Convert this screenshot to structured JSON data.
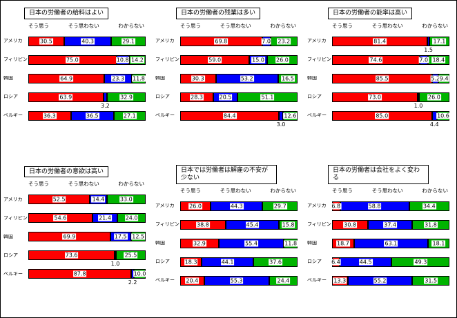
{
  "colors": {
    "agree": "#ff0000",
    "disagree": "#0000ff",
    "unknown": "#00b400"
  },
  "legend": {
    "agree": "そう思う",
    "disagree": "そう思わない",
    "unknown": "わからない"
  },
  "countries": [
    "アメリカ",
    "フィリピン",
    "韓国",
    "ロシア",
    "ベルギー"
  ],
  "chart_data": [
    {
      "type": "bar",
      "stacked": true,
      "orientation": "horizontal",
      "title": "日本の労働者の給料はよい",
      "categories": [
        "アメリカ",
        "フィリピン",
        "韓国",
        "ロシア",
        "ベルギー"
      ],
      "xlim": [
        0,
        100
      ],
      "grid": false,
      "legend_position": "top",
      "series": [
        {
          "name": "そう思う",
          "color": "#ff0000",
          "values": [
            30.5,
            75.0,
            64.9,
            63.9,
            36.3
          ]
        },
        {
          "name": "そう思わない",
          "color": "#0000ff",
          "values": [
            40.3,
            10.8,
            23.3,
            3.2,
            36.5
          ]
        },
        {
          "name": "わからない",
          "color": "#00b400",
          "values": [
            29.1,
            14.2,
            11.8,
            32.9,
            27.1
          ]
        }
      ]
    },
    {
      "type": "bar",
      "stacked": true,
      "orientation": "horizontal",
      "title": "日本の労働者の残業は多い",
      "categories": [
        "アメリカ",
        "フィリピン",
        "韓国",
        "ロシア",
        "ベルギー"
      ],
      "xlim": [
        0,
        100
      ],
      "grid": false,
      "legend_position": "top",
      "series": [
        {
          "name": "そう思う",
          "color": "#ff0000",
          "values": [
            69.8,
            59.0,
            30.3,
            28.3,
            84.4
          ]
        },
        {
          "name": "そう思わない",
          "color": "#0000ff",
          "values": [
            7.0,
            15.0,
            53.2,
            20.5,
            3.0
          ]
        },
        {
          "name": "わからない",
          "color": "#00b400",
          "values": [
            23.2,
            26.0,
            16.5,
            51.1,
            12.6
          ]
        }
      ]
    },
    {
      "type": "bar",
      "stacked": true,
      "orientation": "horizontal",
      "title": "日本の労働者の能率は高い",
      "categories": [
        "アメリカ",
        "フィリピン",
        "韓国",
        "ロシア",
        "ベルギー"
      ],
      "xlim": [
        0,
        100
      ],
      "grid": false,
      "legend_position": "top",
      "series": [
        {
          "name": "そう思う",
          "color": "#ff0000",
          "values": [
            81.4,
            74.6,
            85.5,
            73.0,
            85.0
          ]
        },
        {
          "name": "そう思わない",
          "color": "#0000ff",
          "values": [
            1.5,
            7.0,
            5.2,
            1.0,
            4.4
          ]
        },
        {
          "name": "わからない",
          "color": "#00b400",
          "values": [
            17.1,
            18.4,
            9.4,
            26.0,
            10.6
          ]
        }
      ]
    },
    {
      "type": "bar",
      "stacked": true,
      "orientation": "horizontal",
      "title": "日本の労働者の意欲は高い",
      "categories": [
        "アメリカ",
        "フィリピン",
        "韓国",
        "ロシア",
        "ベルギー"
      ],
      "xlim": [
        0,
        100
      ],
      "grid": false,
      "legend_position": "top",
      "series": [
        {
          "name": "そう思う",
          "color": "#ff0000",
          "values": [
            52.5,
            54.6,
            69.9,
            73.6,
            87.8
          ]
        },
        {
          "name": "そう思わない",
          "color": "#0000ff",
          "values": [
            14.4,
            21.4,
            17.5,
            1.0,
            2.2
          ]
        },
        {
          "name": "わからない",
          "color": "#00b400",
          "values": [
            33.0,
            24.0,
            12.5,
            25.5,
            10.0
          ]
        }
      ]
    },
    {
      "type": "bar",
      "stacked": true,
      "orientation": "horizontal",
      "title": "日本では労働者は解雇の不安が少ない",
      "categories": [
        "アメリカ",
        "フィリピン",
        "韓国",
        "ロシア",
        "ベルギー"
      ],
      "xlim": [
        0,
        100
      ],
      "grid": false,
      "legend_position": "top",
      "series": [
        {
          "name": "そう思う",
          "color": "#ff0000",
          "values": [
            26.0,
            38.8,
            32.9,
            18.3,
            20.4
          ]
        },
        {
          "name": "そう思わない",
          "color": "#0000ff",
          "values": [
            44.3,
            45.4,
            55.4,
            44.1,
            55.3
          ]
        },
        {
          "name": "わからない",
          "color": "#00b400",
          "values": [
            29.7,
            15.8,
            11.8,
            37.6,
            24.4
          ]
        }
      ]
    },
    {
      "type": "bar",
      "stacked": true,
      "orientation": "horizontal",
      "title": "日本の労働者は会社をよく変わる",
      "categories": [
        "アメリカ",
        "フィリピン",
        "韓国",
        "ロシア",
        "ベルギー"
      ],
      "xlim": [
        0,
        100
      ],
      "grid": false,
      "legend_position": "top",
      "series": [
        {
          "name": "そう思う",
          "color": "#ff0000",
          "values": [
            6.8,
            30.8,
            18.7,
            6.4,
            13.3
          ]
        },
        {
          "name": "そう思わない",
          "color": "#0000ff",
          "values": [
            58.8,
            37.4,
            63.1,
            44.5,
            55.2
          ]
        },
        {
          "name": "わからない",
          "color": "#00b400",
          "values": [
            34.4,
            31.8,
            18.1,
            49.3,
            31.5
          ]
        }
      ]
    }
  ]
}
